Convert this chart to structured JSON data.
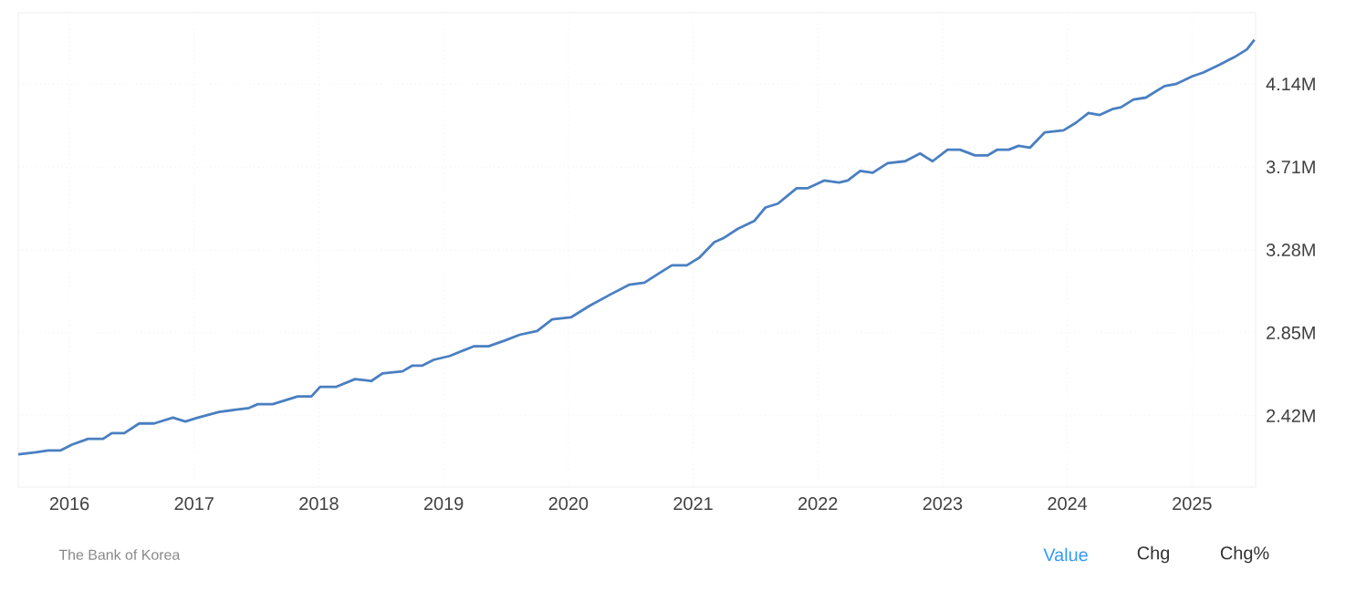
{
  "chart_data": {
    "type": "line",
    "x": [
      2015.59,
      2015.73,
      2015.83,
      2015.93,
      2016.02,
      2016.15,
      2016.27,
      2016.34,
      2016.44,
      2016.56,
      2016.68,
      2016.83,
      2016.93,
      2017.03,
      2017.2,
      2017.32,
      2017.44,
      2017.51,
      2017.63,
      2017.83,
      2017.94,
      2018.01,
      2018.14,
      2018.29,
      2018.42,
      2018.51,
      2018.67,
      2018.75,
      2018.83,
      2018.92,
      2019.05,
      2019.24,
      2019.36,
      2019.49,
      2019.61,
      2019.75,
      2019.87,
      2020.02,
      2020.17,
      2020.34,
      2020.49,
      2020.61,
      2020.73,
      2020.83,
      2020.95,
      2021.05,
      2021.17,
      2021.24,
      2021.36,
      2021.49,
      2021.58,
      2021.68,
      2021.83,
      2021.92,
      2022.05,
      2022.17,
      2022.24,
      2022.34,
      2022.44,
      2022.56,
      2022.7,
      2022.82,
      2022.92,
      2023.04,
      2023.14,
      2023.26,
      2023.36,
      2023.44,
      2023.53,
      2023.61,
      2023.7,
      2023.82,
      2023.97,
      2024.07,
      2024.17,
      2024.26,
      2024.36,
      2024.43,
      2024.53,
      2024.63,
      2024.78,
      2024.87,
      2025.0,
      2025.09,
      2025.22,
      2025.34,
      2025.44,
      2025.5
    ],
    "series": [
      {
        "color": "#4a7fc1",
        "values": [
          2.22,
          2.23,
          2.24,
          2.24,
          2.27,
          2.3,
          2.3,
          2.33,
          2.33,
          2.38,
          2.38,
          2.41,
          2.39,
          2.41,
          2.44,
          2.45,
          2.46,
          2.48,
          2.48,
          2.52,
          2.52,
          2.57,
          2.57,
          2.61,
          2.6,
          2.64,
          2.65,
          2.68,
          2.68,
          2.71,
          2.73,
          2.78,
          2.78,
          2.81,
          2.84,
          2.86,
          2.92,
          2.93,
          2.99,
          3.05,
          3.1,
          3.11,
          3.16,
          3.2,
          3.2,
          3.24,
          3.32,
          3.34,
          3.39,
          3.43,
          3.5,
          3.52,
          3.6,
          3.6,
          3.64,
          3.63,
          3.64,
          3.69,
          3.68,
          3.73,
          3.74,
          3.78,
          3.74,
          3.8,
          3.8,
          3.77,
          3.77,
          3.8,
          3.8,
          3.82,
          3.81,
          3.89,
          3.9,
          3.94,
          3.99,
          3.98,
          4.01,
          4.02,
          4.06,
          4.07,
          4.13,
          4.14,
          4.18,
          4.2,
          4.24,
          4.28,
          4.32,
          4.37
        ]
      }
    ],
    "xlim": [
      2015.59,
      2025.51
    ],
    "ylim": [
      2.05,
      4.51
    ],
    "xticks": [
      2016,
      2017,
      2018,
      2019,
      2020,
      2021,
      2022,
      2023,
      2024,
      2025
    ],
    "yticks": [
      {
        "value": 2.42,
        "label": "2.42M"
      },
      {
        "value": 2.85,
        "label": "2.85M"
      },
      {
        "value": 3.28,
        "label": "3.28M"
      },
      {
        "value": 3.71,
        "label": "3.71M"
      },
      {
        "value": 4.14,
        "label": "4.14M"
      }
    ],
    "grid": true,
    "line_style": "solid",
    "marker": "none",
    "annotations": [
      "The Bank of Korea",
      "Value",
      "Chg",
      "Chg%"
    ]
  }
}
